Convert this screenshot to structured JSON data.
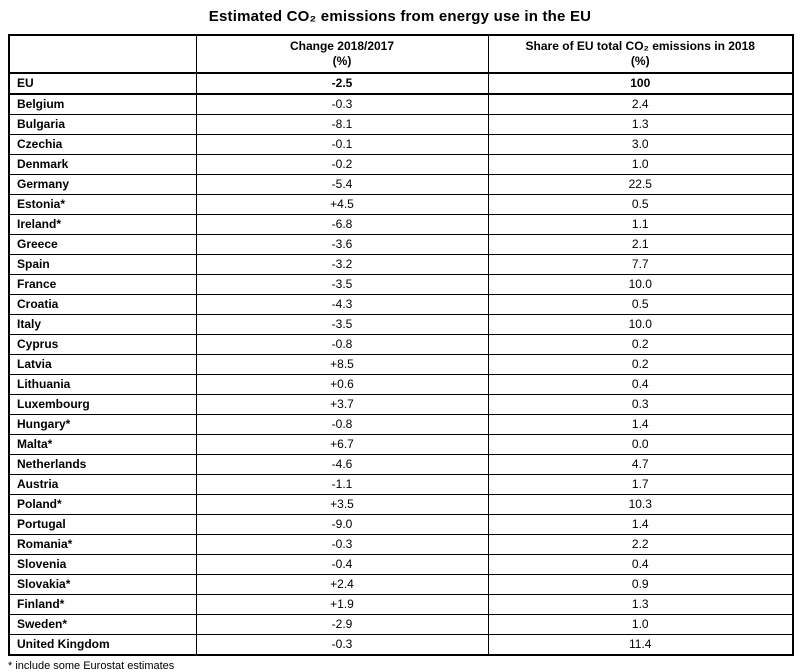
{
  "title": "Estimated CO₂ emissions from energy use in the EU",
  "footnote": "* include some Eurostat estimates",
  "table": {
    "headers": {
      "country": "",
      "change_line1": "Change 2018/2017",
      "change_line2": "(%)",
      "share_line1": "Share of EU total CO₂ emissions in 2018",
      "share_line2": "(%)"
    },
    "rows": [
      {
        "country": "EU",
        "change": "-2.5",
        "share": "100",
        "bold": true
      },
      {
        "country": "Belgium",
        "change": "-0.3",
        "share": "2.4"
      },
      {
        "country": "Bulgaria",
        "change": "-8.1",
        "share": "1.3"
      },
      {
        "country": "Czechia",
        "change": "-0.1",
        "share": "3.0"
      },
      {
        "country": "Denmark",
        "change": "-0.2",
        "share": "1.0"
      },
      {
        "country": "Germany",
        "change": "-5.4",
        "share": "22.5"
      },
      {
        "country": "Estonia*",
        "change": "+4.5",
        "share": "0.5"
      },
      {
        "country": "Ireland*",
        "change": "-6.8",
        "share": "1.1"
      },
      {
        "country": "Greece",
        "change": "-3.6",
        "share": "2.1"
      },
      {
        "country": "Spain",
        "change": "-3.2",
        "share": "7.7"
      },
      {
        "country": "France",
        "change": "-3.5",
        "share": "10.0"
      },
      {
        "country": "Croatia",
        "change": "-4.3",
        "share": "0.5"
      },
      {
        "country": "Italy",
        "change": "-3.5",
        "share": "10.0"
      },
      {
        "country": "Cyprus",
        "change": "-0.8",
        "share": "0.2"
      },
      {
        "country": "Latvia",
        "change": "+8.5",
        "share": "0.2"
      },
      {
        "country": "Lithuania",
        "change": "+0.6",
        "share": "0.4"
      },
      {
        "country": "Luxembourg",
        "change": "+3.7",
        "share": "0.3"
      },
      {
        "country": "Hungary*",
        "change": "-0.8",
        "share": "1.4"
      },
      {
        "country": "Malta*",
        "change": "+6.7",
        "share": "0.0"
      },
      {
        "country": "Netherlands",
        "change": "-4.6",
        "share": "4.7"
      },
      {
        "country": "Austria",
        "change": "-1.1",
        "share": "1.7"
      },
      {
        "country": "Poland*",
        "change": "+3.5",
        "share": "10.3"
      },
      {
        "country": "Portugal",
        "change": "-9.0",
        "share": "1.4"
      },
      {
        "country": "Romania*",
        "change": "-0.3",
        "share": "2.2"
      },
      {
        "country": "Slovenia",
        "change": "-0.4",
        "share": "0.4"
      },
      {
        "country": "Slovakia*",
        "change": "+2.4",
        "share": "0.9"
      },
      {
        "country": "Finland*",
        "change": "+1.9",
        "share": "1.3"
      },
      {
        "country": "Sweden*",
        "change": "-2.9",
        "share": "1.0"
      },
      {
        "country": "United Kingdom",
        "change": "-0.3",
        "share": "11.4"
      }
    ]
  },
  "chart_data": {
    "type": "table",
    "title": "Estimated CO₂ emissions from energy use in the EU",
    "columns": [
      "Country",
      "Change 2018/2017 (%)",
      "Share of EU total CO₂ emissions in 2018 (%)"
    ],
    "rows": [
      [
        "EU",
        -2.5,
        100
      ],
      [
        "Belgium",
        -0.3,
        2.4
      ],
      [
        "Bulgaria",
        -8.1,
        1.3
      ],
      [
        "Czechia",
        -0.1,
        3.0
      ],
      [
        "Denmark",
        -0.2,
        1.0
      ],
      [
        "Germany",
        -5.4,
        22.5
      ],
      [
        "Estonia*",
        4.5,
        0.5
      ],
      [
        "Ireland*",
        -6.8,
        1.1
      ],
      [
        "Greece",
        -3.6,
        2.1
      ],
      [
        "Spain",
        -3.2,
        7.7
      ],
      [
        "France",
        -3.5,
        10.0
      ],
      [
        "Croatia",
        -4.3,
        0.5
      ],
      [
        "Italy",
        -3.5,
        10.0
      ],
      [
        "Cyprus",
        -0.8,
        0.2
      ],
      [
        "Latvia",
        8.5,
        0.2
      ],
      [
        "Lithuania",
        0.6,
        0.4
      ],
      [
        "Luxembourg",
        3.7,
        0.3
      ],
      [
        "Hungary*",
        -0.8,
        1.4
      ],
      [
        "Malta*",
        6.7,
        0.0
      ],
      [
        "Netherlands",
        -4.6,
        4.7
      ],
      [
        "Austria",
        -1.1,
        1.7
      ],
      [
        "Poland*",
        3.5,
        10.3
      ],
      [
        "Portugal",
        -9.0,
        1.4
      ],
      [
        "Romania*",
        -0.3,
        2.2
      ],
      [
        "Slovenia",
        -0.4,
        0.4
      ],
      [
        "Slovakia*",
        2.4,
        0.9
      ],
      [
        "Finland*",
        1.9,
        1.3
      ],
      [
        "Sweden*",
        -2.9,
        1.0
      ],
      [
        "United Kingdom",
        -0.3,
        11.4
      ]
    ],
    "footnote": "* include some Eurostat estimates"
  }
}
